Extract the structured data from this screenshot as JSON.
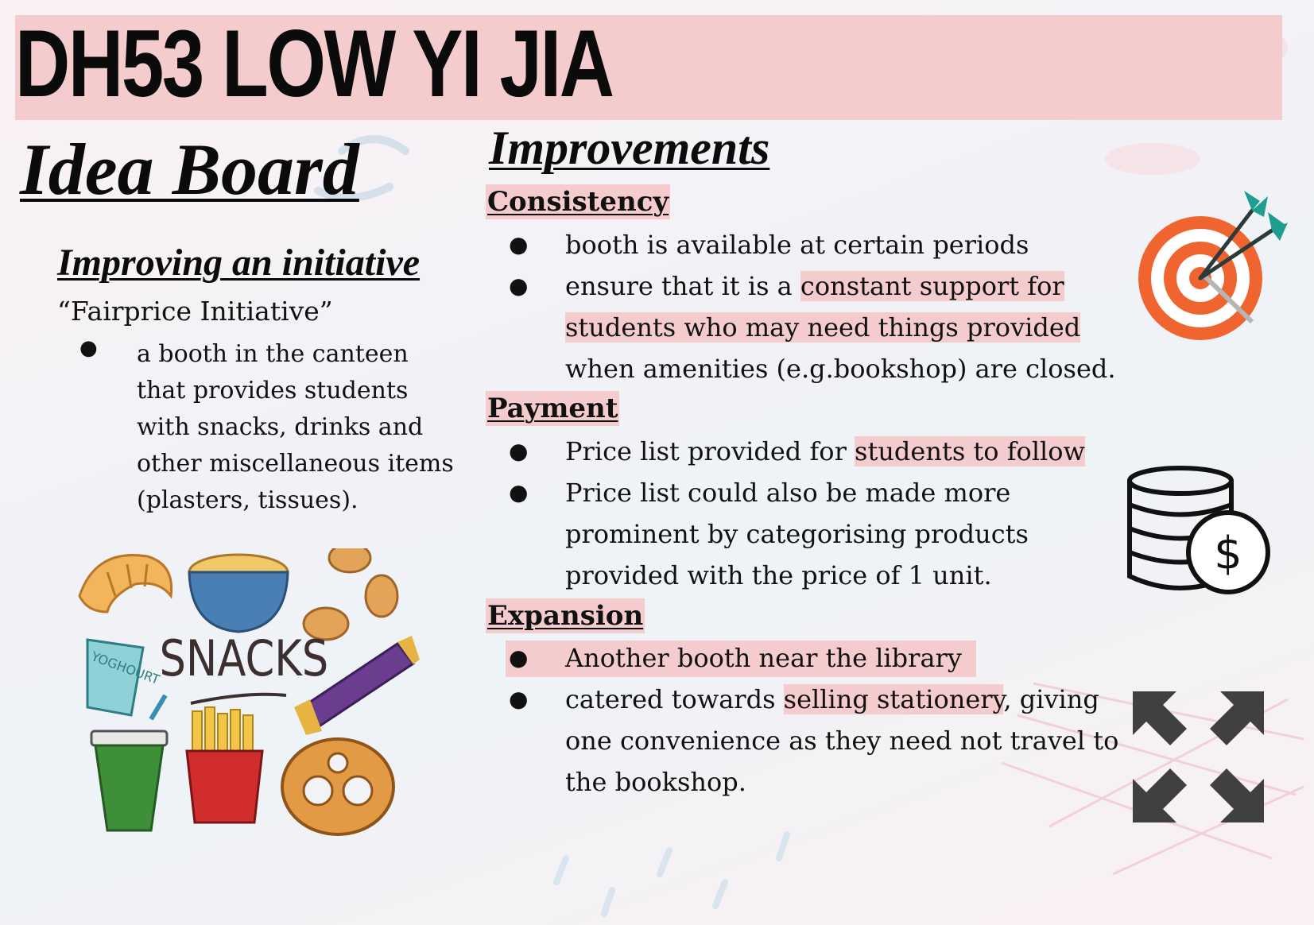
{
  "header": {
    "title": "DH53 LOW YI JIA"
  },
  "left": {
    "board_title": "Idea Board",
    "subtitle": "Improving an initiative",
    "initiative_name": "“Fairprice Initiative”",
    "description": "a booth in the canteen that provides students with snacks, drinks and other miscellaneous items (plasters, tissues).",
    "bullet": "●",
    "snacks_label": "SNACKS",
    "yoghourt_label": "YOGHOURT"
  },
  "right": {
    "title": "Improvements",
    "sections": [
      {
        "heading": "Consistency",
        "items": [
          {
            "plain": "booth is available at certain periods"
          },
          {
            "pre": "ensure that it is  a ",
            "highlight": "constant support for students who may need things provided",
            "post": " when amenities (e.g.bookshop) are closed."
          }
        ]
      },
      {
        "heading": "Payment",
        "items": [
          {
            "pre": "Price list provided for ",
            "highlight": "students to follow",
            "post": ""
          },
          {
            "plain": "Price list could also be made more prominent by  categorising  products provided  with the price of 1 unit."
          }
        ]
      },
      {
        "heading": "Expansion",
        "items": [
          {
            "plain": "Another booth near the library"
          },
          {
            "pre": "catered towards ",
            "highlight": "selling stationery",
            "post": ",  giving one convenience as they need not travel to the bookshop."
          }
        ]
      }
    ]
  },
  "icons": {
    "target": "target-with-arrows-icon",
    "money": "coin-stack-dollar-icon",
    "expand": "expand-arrows-icon",
    "currency_symbol": "$"
  },
  "colors": {
    "highlight": "#f4cccd",
    "target_orange": "#f0652f",
    "arrow_teal": "#1f9e8f",
    "expand_gray": "#404040"
  }
}
